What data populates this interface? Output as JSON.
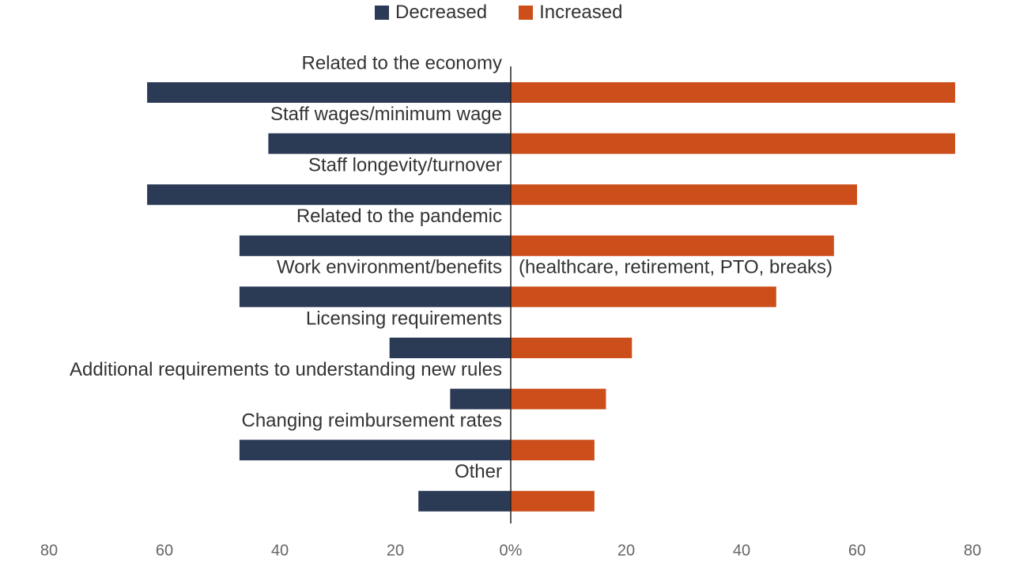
{
  "colors": {
    "decreased": "#2b3a55",
    "increased": "#cc4f1b",
    "text": "#333333",
    "axis": "#222222",
    "tick": "#666666"
  },
  "legend": {
    "decreased_label": "Decreased",
    "increased_label": "Increased"
  },
  "chart_data": {
    "type": "bar",
    "orientation": "horizontal-diverging",
    "title": "",
    "xlabel": "",
    "ylabel": "",
    "xlim": [
      -80,
      80
    ],
    "categories": [
      "Related to the economy",
      "Staff wages/minimum wage",
      "Staff longevity/turnover",
      "Related to the pandemic",
      "Work environment/benefits",
      "Licensing requirements",
      "Additional requirements to understanding new rules",
      "Changing reimbursement rates",
      "Other"
    ],
    "category_notes": [
      "",
      "",
      "",
      "",
      "(healthcare, retirement, PTO, breaks)",
      "",
      "",
      "",
      ""
    ],
    "series": [
      {
        "name": "Decreased",
        "values": [
          63,
          42,
          63,
          47,
          47,
          21,
          10.5,
          47,
          16
        ]
      },
      {
        "name": "Increased",
        "values": [
          77,
          77,
          60,
          56,
          46,
          21,
          16.5,
          14.5,
          14.5
        ]
      }
    ],
    "xticks": [
      "80",
      "60",
      "40",
      "20",
      "0%",
      "20",
      "40",
      "60",
      "80"
    ],
    "grid": false,
    "legend_position": "top-center"
  }
}
